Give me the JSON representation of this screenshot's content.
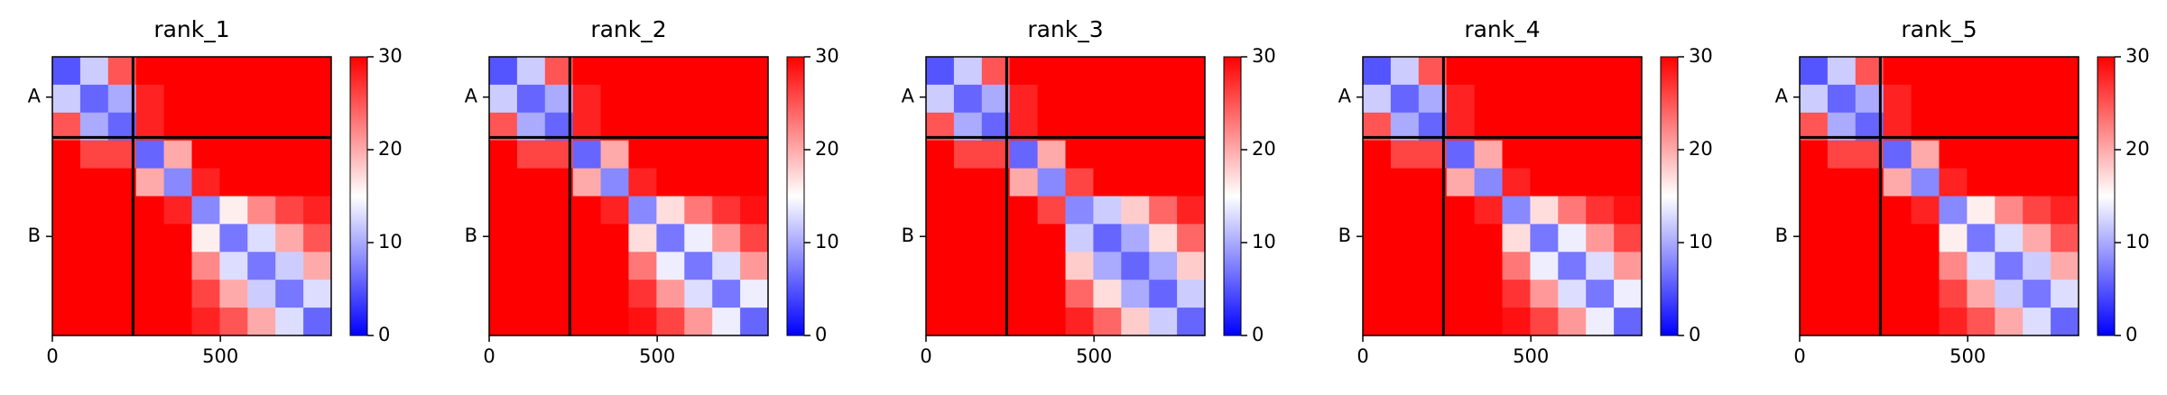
{
  "chart_data": [
    {
      "type": "heatmap",
      "title": "rank_1",
      "xlim": [
        0,
        830
      ],
      "ylim": [
        830,
        0
      ],
      "xticks": [
        0,
        500
      ],
      "yticks": [
        {
          "value": 120,
          "label": "A"
        },
        {
          "value": 535,
          "label": "B"
        }
      ],
      "chain_breaks": [
        240
      ],
      "clim": [
        0,
        30
      ],
      "colorbar_ticks": [
        0,
        10,
        20,
        30
      ],
      "colors": [
        "#0000ff",
        "#ffffff",
        "#ff0000"
      ],
      "values": [
        [
          5,
          12,
          25,
          30,
          30,
          30,
          30,
          30,
          30,
          30
        ],
        [
          12,
          6,
          10,
          28,
          30,
          30,
          30,
          30,
          30,
          30
        ],
        [
          25,
          10,
          6,
          28,
          30,
          30,
          30,
          30,
          30,
          30
        ],
        [
          30,
          26,
          26,
          6,
          20,
          30,
          30,
          30,
          30,
          30
        ],
        [
          30,
          30,
          30,
          20,
          8,
          28,
          30,
          30,
          30,
          30
        ],
        [
          30,
          30,
          30,
          30,
          28,
          8,
          16,
          22,
          26,
          28
        ],
        [
          30,
          30,
          30,
          30,
          30,
          16,
          7,
          13,
          20,
          25
        ],
        [
          30,
          30,
          30,
          30,
          30,
          22,
          13,
          7,
          12,
          20
        ],
        [
          30,
          30,
          30,
          30,
          30,
          26,
          20,
          12,
          7,
          13
        ],
        [
          30,
          30,
          30,
          30,
          30,
          28,
          25,
          20,
          13,
          6
        ]
      ]
    },
    {
      "type": "heatmap",
      "title": "rank_2",
      "xlim": [
        0,
        830
      ],
      "ylim": [
        830,
        0
      ],
      "xticks": [
        0,
        500
      ],
      "yticks": [
        {
          "value": 120,
          "label": "A"
        },
        {
          "value": 535,
          "label": "B"
        }
      ],
      "chain_breaks": [
        240
      ],
      "clim": [
        0,
        30
      ],
      "colorbar_ticks": [
        0,
        10,
        20,
        30
      ],
      "colors": [
        "#0000ff",
        "#ffffff",
        "#ff0000"
      ],
      "values": [
        [
          5,
          12,
          25,
          30,
          30,
          30,
          30,
          30,
          30,
          30
        ],
        [
          12,
          6,
          10,
          28,
          30,
          30,
          30,
          30,
          30,
          30
        ],
        [
          25,
          10,
          6,
          28,
          30,
          30,
          30,
          30,
          30,
          30
        ],
        [
          30,
          26,
          26,
          6,
          20,
          30,
          30,
          30,
          30,
          30
        ],
        [
          30,
          30,
          30,
          20,
          8,
          28,
          30,
          30,
          30,
          30
        ],
        [
          30,
          30,
          30,
          30,
          28,
          8,
          17,
          23,
          27,
          29
        ],
        [
          30,
          30,
          30,
          30,
          30,
          17,
          7,
          14,
          21,
          26
        ],
        [
          30,
          30,
          30,
          30,
          30,
          23,
          14,
          7,
          13,
          21
        ],
        [
          30,
          30,
          30,
          30,
          30,
          27,
          21,
          13,
          7,
          14
        ],
        [
          30,
          30,
          30,
          30,
          30,
          29,
          26,
          21,
          14,
          6
        ]
      ]
    },
    {
      "type": "heatmap",
      "title": "rank_3",
      "xlim": [
        0,
        830
      ],
      "ylim": [
        830,
        0
      ],
      "xticks": [
        0,
        500
      ],
      "yticks": [
        {
          "value": 120,
          "label": "A"
        },
        {
          "value": 535,
          "label": "B"
        }
      ],
      "chain_breaks": [
        240
      ],
      "clim": [
        0,
        30
      ],
      "colorbar_ticks": [
        0,
        10,
        20,
        30
      ],
      "colors": [
        "#0000ff",
        "#ffffff",
        "#ff0000"
      ],
      "values": [
        [
          5,
          12,
          25,
          30,
          30,
          30,
          30,
          30,
          30,
          30
        ],
        [
          12,
          6,
          10,
          28,
          30,
          30,
          30,
          30,
          30,
          30
        ],
        [
          25,
          10,
          6,
          28,
          30,
          30,
          30,
          30,
          30,
          30
        ],
        [
          30,
          26,
          26,
          6,
          20,
          30,
          30,
          30,
          30,
          30
        ],
        [
          30,
          30,
          30,
          20,
          8,
          26,
          30,
          30,
          30,
          30
        ],
        [
          30,
          30,
          30,
          30,
          26,
          8,
          12,
          18,
          24,
          28
        ],
        [
          30,
          30,
          30,
          30,
          30,
          12,
          6,
          10,
          17,
          24
        ],
        [
          30,
          30,
          30,
          30,
          30,
          18,
          10,
          6,
          10,
          18
        ],
        [
          30,
          30,
          30,
          30,
          30,
          24,
          17,
          10,
          6,
          12
        ],
        [
          30,
          30,
          30,
          30,
          30,
          28,
          24,
          18,
          12,
          6
        ]
      ]
    },
    {
      "type": "heatmap",
      "title": "rank_4",
      "xlim": [
        0,
        830
      ],
      "ylim": [
        830,
        0
      ],
      "xticks": [
        0,
        500
      ],
      "yticks": [
        {
          "value": 120,
          "label": "A"
        },
        {
          "value": 535,
          "label": "B"
        }
      ],
      "chain_breaks": [
        240
      ],
      "clim": [
        0,
        30
      ],
      "colorbar_ticks": [
        0,
        10,
        20,
        30
      ],
      "colors": [
        "#0000ff",
        "#ffffff",
        "#ff0000"
      ],
      "values": [
        [
          5,
          12,
          25,
          30,
          30,
          30,
          30,
          30,
          30,
          30
        ],
        [
          12,
          6,
          10,
          28,
          30,
          30,
          30,
          30,
          30,
          30
        ],
        [
          25,
          10,
          6,
          28,
          30,
          30,
          30,
          30,
          30,
          30
        ],
        [
          30,
          26,
          26,
          6,
          20,
          30,
          30,
          30,
          30,
          30
        ],
        [
          30,
          30,
          30,
          20,
          8,
          28,
          30,
          30,
          30,
          30
        ],
        [
          30,
          30,
          30,
          30,
          28,
          8,
          17,
          23,
          27,
          29
        ],
        [
          30,
          30,
          30,
          30,
          30,
          17,
          7,
          14,
          21,
          26
        ],
        [
          30,
          30,
          30,
          30,
          30,
          23,
          14,
          7,
          13,
          21
        ],
        [
          30,
          30,
          30,
          30,
          30,
          27,
          21,
          13,
          7,
          14
        ],
        [
          30,
          30,
          30,
          30,
          30,
          29,
          26,
          21,
          14,
          6
        ]
      ]
    },
    {
      "type": "heatmap",
      "title": "rank_5",
      "xlim": [
        0,
        830
      ],
      "ylim": [
        830,
        0
      ],
      "xticks": [
        0,
        500
      ],
      "yticks": [
        {
          "value": 120,
          "label": "A"
        },
        {
          "value": 535,
          "label": "B"
        }
      ],
      "chain_breaks": [
        240
      ],
      "clim": [
        0,
        30
      ],
      "colorbar_ticks": [
        0,
        10,
        20,
        30
      ],
      "colors": [
        "#0000ff",
        "#ffffff",
        "#ff0000"
      ],
      "values": [
        [
          5,
          12,
          25,
          30,
          30,
          30,
          30,
          30,
          30,
          30
        ],
        [
          12,
          6,
          10,
          28,
          30,
          30,
          30,
          30,
          30,
          30
        ],
        [
          25,
          10,
          6,
          28,
          30,
          30,
          30,
          30,
          30,
          30
        ],
        [
          30,
          26,
          26,
          6,
          20,
          30,
          30,
          30,
          30,
          30
        ],
        [
          30,
          30,
          30,
          20,
          8,
          28,
          30,
          30,
          30,
          30
        ],
        [
          30,
          30,
          30,
          30,
          28,
          8,
          16,
          22,
          26,
          28
        ],
        [
          30,
          30,
          30,
          30,
          30,
          16,
          7,
          13,
          20,
          25
        ],
        [
          30,
          30,
          30,
          30,
          30,
          22,
          13,
          7,
          12,
          20
        ],
        [
          30,
          30,
          30,
          30,
          30,
          26,
          20,
          12,
          7,
          13
        ],
        [
          30,
          30,
          30,
          30,
          30,
          28,
          25,
          20,
          13,
          6
        ]
      ]
    }
  ]
}
